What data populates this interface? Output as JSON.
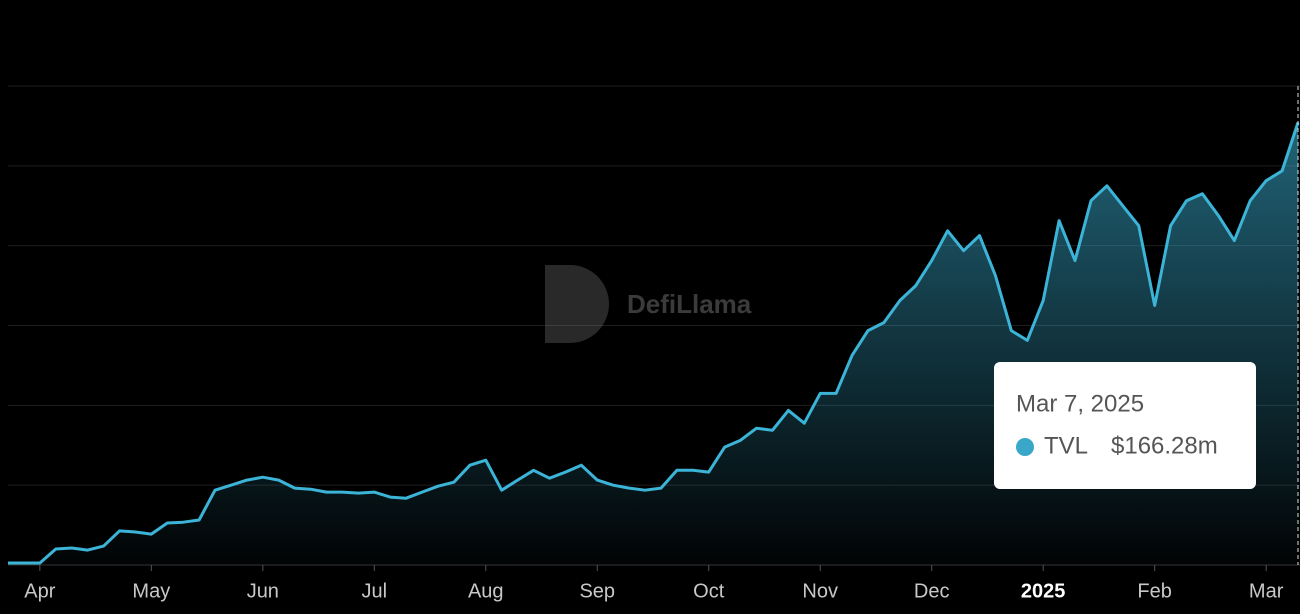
{
  "chart_data": {
    "type": "area",
    "categories": [
      null,
      null,
      "Apr",
      null,
      null,
      null,
      null,
      null,
      null,
      "May",
      null,
      null,
      null,
      null,
      null,
      null,
      "Jun",
      null,
      null,
      null,
      null,
      null,
      null,
      "Jul",
      null,
      null,
      null,
      null,
      null,
      null,
      "Aug",
      null,
      null,
      null,
      null,
      null,
      null,
      "Sep",
      null,
      null,
      null,
      null,
      null,
      null,
      "Oct",
      null,
      null,
      null,
      null,
      null,
      null,
      "Nov",
      null,
      null,
      null,
      null,
      null,
      null,
      "Dec",
      null,
      null,
      null,
      null,
      null,
      null,
      "2025",
      null,
      null,
      null,
      null,
      null,
      null,
      "Feb",
      null,
      null,
      null,
      null,
      null,
      null,
      "Mar",
      null,
      null
    ],
    "series": [
      {
        "name": "TVL",
        "color": "#3cb4d8",
        "values": [
          0.75,
          0.75,
          0.75,
          6.0,
          6.4,
          5.6,
          7.1,
          12.8,
          12.4,
          11.6,
          15.8,
          16.1,
          16.9,
          28.1,
          30.0,
          31.9,
          33.0,
          31.9,
          28.9,
          28.5,
          27.4,
          27.4,
          27.0,
          27.4,
          25.5,
          25.1,
          27.4,
          29.6,
          31.1,
          37.5,
          39.4,
          28.1,
          31.9,
          35.6,
          32.6,
          34.9,
          37.5,
          31.9,
          30.0,
          28.9,
          28.1,
          28.9,
          35.6,
          35.6,
          34.9,
          44.3,
          46.9,
          51.4,
          50.6,
          58.1,
          53.3,
          64.5,
          64.5,
          78.8,
          88.1,
          91.1,
          99.4,
          105.0,
          114.4,
          125.6,
          118.1,
          123.8,
          108.8,
          88.1,
          84.4,
          99.4,
          129.4,
          114.4,
          136.9,
          142.5,
          135.0,
          127.5,
          97.5,
          127.5,
          136.9,
          139.5,
          131.3,
          121.9,
          136.9,
          144.4,
          148.1,
          166.28
        ]
      }
    ],
    "ylim": [
      0,
      180
    ],
    "yticks": [
      0,
      30,
      60,
      90,
      120,
      150,
      180
    ],
    "grid": true,
    "tooltip": {
      "x": "Mar 7, 2025",
      "value": 166.28,
      "value_label": "$166.28m"
    },
    "watermark": "DefiLlama"
  }
}
